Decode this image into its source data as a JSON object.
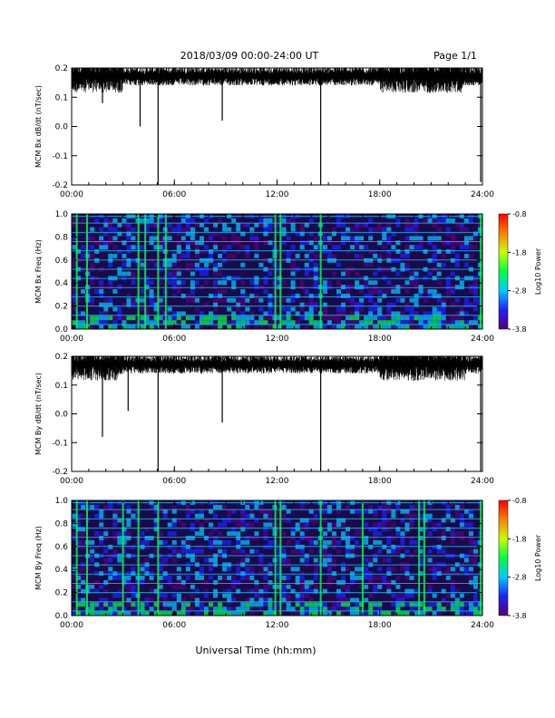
{
  "header": {
    "title": "2018/03/09  00:00-24:00 UT",
    "page": "Page 1/1"
  },
  "xlabel": "Universal Time (hh:mm)",
  "x_ticks": [
    "00:00",
    "06:00",
    "12:00",
    "18:00",
    "24:00"
  ],
  "colors": {
    "trace": "#000000",
    "spectrogram_bg": "#1a0a4a",
    "colorbar": [
      "#5a0078",
      "#2020ff",
      "#00c8ff",
      "#00ff40",
      "#c8ff00",
      "#ff8000",
      "#ff0000"
    ]
  },
  "chart_data": [
    {
      "type": "line",
      "ylabel": "MCM Bx dB/dt (nT/sec)",
      "xlim_hours": [
        0,
        24
      ],
      "ylim": [
        -0.2,
        0.2
      ],
      "y_ticks": [
        "0.2",
        "0.1",
        "0.0",
        "-0.1",
        "-0.2"
      ],
      "baseline": 0.17,
      "spikes": [
        {
          "t": 5.05,
          "value": -0.2
        },
        {
          "t": 4.0,
          "value": 0.0
        },
        {
          "t": 14.55,
          "value": -0.2
        },
        {
          "t": 8.8,
          "value": 0.02
        },
        {
          "t": 23.9,
          "value": -0.19
        },
        {
          "t": 1.8,
          "value": 0.08
        }
      ]
    },
    {
      "type": "heatmap",
      "ylabel": "MCM Bx Freq (Hz)",
      "xlim_hours": [
        0,
        24
      ],
      "ylim": [
        0.0,
        1.0
      ],
      "y_ticks": [
        "1.0",
        "0.8",
        "0.6",
        "0.4",
        "0.2",
        "0.0"
      ],
      "colorbar_label": "Log10 Power",
      "colorbar_ticks": [
        "-0.8",
        "-1.8",
        "-2.8",
        "-3.8"
      ],
      "colorbar_range": [
        -3.8,
        -0.8
      ],
      "harmonic_lines_hz": [
        0.04,
        0.12,
        0.2,
        0.28,
        0.36,
        0.44,
        0.52,
        0.6,
        0.68,
        0.76,
        0.84,
        0.92,
        0.98
      ],
      "vertical_bands_hours": [
        0.3,
        0.9,
        3.9,
        4.3,
        5.05,
        5.5,
        11.9,
        12.2,
        14.55,
        23.9
      ]
    },
    {
      "type": "line",
      "ylabel": "MCM By dB/dt (nT/sec)",
      "xlim_hours": [
        0,
        24
      ],
      "ylim": [
        -0.2,
        0.2
      ],
      "y_ticks": [
        "0.2",
        "0.1",
        "0.0",
        "-0.1",
        "-0.2"
      ],
      "baseline": 0.17,
      "spikes": [
        {
          "t": 5.05,
          "value": -0.2
        },
        {
          "t": 1.8,
          "value": -0.08
        },
        {
          "t": 14.55,
          "value": -0.2
        },
        {
          "t": 8.8,
          "value": -0.03
        },
        {
          "t": 23.9,
          "value": -0.2
        },
        {
          "t": 3.3,
          "value": 0.01
        }
      ]
    },
    {
      "type": "heatmap",
      "ylabel": "MCM By Freq (Hz)",
      "xlim_hours": [
        0,
        24
      ],
      "ylim": [
        0.0,
        1.0
      ],
      "y_ticks": [
        "1.0",
        "0.8",
        "0.6",
        "0.4",
        "0.2",
        "0.0"
      ],
      "colorbar_label": "Log10 Power",
      "colorbar_ticks": [
        "-0.8",
        "-1.8",
        "-2.8",
        "-3.8"
      ],
      "colorbar_range": [
        -3.8,
        -0.8
      ],
      "harmonic_lines_hz": [
        0.04,
        0.12,
        0.2,
        0.28,
        0.36,
        0.44,
        0.52,
        0.6,
        0.68,
        0.76,
        0.84,
        0.92,
        0.98
      ],
      "vertical_bands_hours": [
        0.3,
        0.9,
        3.0,
        3.9,
        5.05,
        11.9,
        12.2,
        14.55,
        17.0,
        20.3,
        20.6,
        23.9
      ]
    }
  ]
}
